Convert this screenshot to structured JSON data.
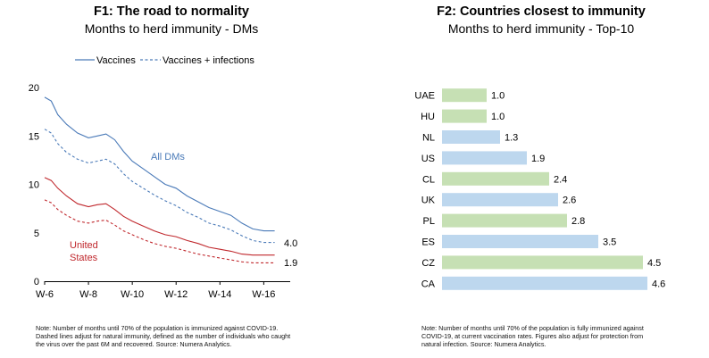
{
  "figures": {
    "f1": {
      "title": "F1: The road to normality",
      "subtitle": "Months to herd immunity - DMs",
      "note": "Note: Number of months until 70% of the population is immunized against COVID-19. Dashed lines adjust for natural immunity, defined as the number of individuals who caught the virus over the past 6M and recovered. Source: Numera Analytics."
    },
    "f2": {
      "title": "F2: Countries closest to immunity",
      "subtitle": "Months to herd immunity - Top-10",
      "note": "Note: Number of months until 70% of the population is fully immunized against COVID-19, at current vaccination rates. Figures also adjust for protection from natural infection. Source: Numera Analytics."
    }
  },
  "colors": {
    "alldm": "#4a7ab8",
    "us": "#c0282d",
    "bar_green": "#c6e0b4",
    "bar_blue": "#bdd7ee"
  },
  "chart_data": [
    {
      "type": "line",
      "title": "F1: The road to normality",
      "subtitle": "Months to herd immunity - DMs",
      "x_ticks": [
        "W-6",
        "W-8",
        "W-10",
        "W-12",
        "W-14",
        "W-16"
      ],
      "x_tick_positions": [
        -6,
        -8,
        -10,
        -12,
        -14,
        -16
      ],
      "xlim": [
        -6,
        -16.8
      ],
      "ylim": [
        0,
        20
      ],
      "y_ticks": [
        "0",
        "5",
        "10",
        "15",
        "20"
      ],
      "legend": {
        "position": "top",
        "entries": [
          {
            "label": "Vaccines",
            "style": "solid"
          },
          {
            "label": "Vaccines + infections",
            "style": "dashed"
          }
        ]
      },
      "annotations": [
        {
          "text": "All DMs",
          "color": "#4a7ab8"
        },
        {
          "text": "United",
          "color": "#c0282d"
        },
        {
          "text": "States",
          "color": "#c0282d"
        },
        {
          "text": "4.0"
        },
        {
          "text": "1.9"
        }
      ],
      "x": [
        -6,
        -6.3,
        -6.6,
        -7,
        -7.5,
        -8,
        -8.4,
        -8.8,
        -9.2,
        -9.6,
        -10,
        -10.5,
        -11,
        -11.5,
        -12,
        -12.5,
        -13,
        -13.5,
        -14,
        -14.5,
        -15,
        -15.5,
        -16,
        -16.5
      ],
      "series": [
        {
          "label": "All DMs",
          "style": "solid",
          "color": "#4a7ab8",
          "values": [
            19.0,
            18.6,
            17.2,
            16.2,
            15.3,
            14.8,
            15.0,
            15.2,
            14.6,
            13.4,
            12.4,
            11.6,
            10.8,
            10.0,
            9.6,
            8.8,
            8.2,
            7.6,
            7.2,
            6.8,
            6.0,
            5.4,
            5.2,
            5.2
          ]
        },
        {
          "label": "All DMs",
          "style": "dashed",
          "color": "#4a7ab8",
          "values": [
            15.7,
            15.3,
            14.2,
            13.3,
            12.6,
            12.2,
            12.4,
            12.6,
            12.1,
            11.1,
            10.3,
            9.6,
            8.9,
            8.3,
            7.8,
            7.1,
            6.6,
            6.0,
            5.7,
            5.3,
            4.7,
            4.2,
            4.0,
            4.0
          ]
        },
        {
          "label": "United States",
          "style": "solid",
          "color": "#c0282d",
          "values": [
            10.7,
            10.4,
            9.6,
            8.8,
            8.0,
            7.7,
            7.9,
            8.0,
            7.4,
            6.7,
            6.2,
            5.7,
            5.2,
            4.8,
            4.6,
            4.2,
            3.9,
            3.5,
            3.3,
            3.1,
            2.8,
            2.7,
            2.7,
            2.7
          ]
        },
        {
          "label": "United States",
          "style": "dashed",
          "color": "#c0282d",
          "values": [
            8.4,
            8.1,
            7.4,
            6.8,
            6.2,
            6.0,
            6.2,
            6.3,
            5.8,
            5.2,
            4.8,
            4.3,
            3.9,
            3.6,
            3.4,
            3.1,
            2.8,
            2.6,
            2.4,
            2.2,
            2.0,
            1.9,
            1.9,
            1.9
          ]
        }
      ]
    },
    {
      "type": "bar",
      "orientation": "horizontal",
      "title": "F2: Countries closest to immunity",
      "subtitle": "Months to herd immunity - Top-10",
      "categories": [
        "UAE",
        "HU",
        "NL",
        "US",
        "CL",
        "UK",
        "PL",
        "ES",
        "CZ",
        "CA"
      ],
      "values": [
        1.0,
        1.0,
        1.3,
        1.9,
        2.4,
        2.6,
        2.8,
        3.5,
        4.5,
        4.6
      ],
      "data_labels": [
        "1.0",
        "1.0",
        "1.3",
        "1.9",
        "2.4",
        "2.6",
        "2.8",
        "3.5",
        "4.5",
        "4.6"
      ],
      "bar_colors": [
        "#c6e0b4",
        "#c6e0b4",
        "#bdd7ee",
        "#bdd7ee",
        "#c6e0b4",
        "#bdd7ee",
        "#c6e0b4",
        "#bdd7ee",
        "#c6e0b4",
        "#bdd7ee"
      ],
      "xlim": [
        0,
        4.6
      ]
    }
  ]
}
